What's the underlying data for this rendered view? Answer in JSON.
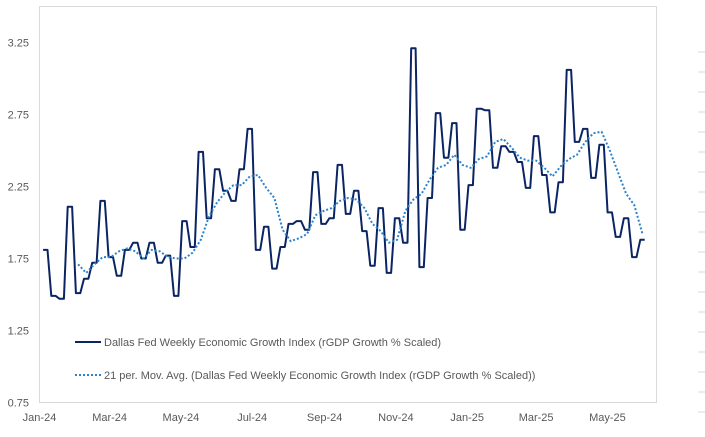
{
  "chart_data": {
    "type": "line",
    "title": "",
    "xlabel": "",
    "ylabel": "",
    "ylim": [
      0.75,
      3.5
    ],
    "y_ticks": [
      "0.75",
      "1.25",
      "1.75",
      "2.25",
      "2.75",
      "3.25"
    ],
    "x_ticks": [
      "Jan-24",
      "Mar-24",
      "May-24",
      "Jul-24",
      "Sep-24",
      "Nov-24",
      "Jan-25",
      "Mar-25",
      "May-25"
    ],
    "x_tick_dates": [
      "2024-01-01",
      "2024-03-01",
      "2024-05-01",
      "2024-07-01",
      "2024-09-01",
      "2024-11-01",
      "2025-01-01",
      "2025-03-01",
      "2025-05-01"
    ],
    "xlim": [
      "2024-01-01",
      "2025-06-12"
    ],
    "grid": false,
    "legend_position": "bottom-left (inside plot)",
    "x": [
      "2024-01-06",
      "2024-01-13",
      "2024-01-20",
      "2024-01-27",
      "2024-02-03",
      "2024-02-10",
      "2024-02-17",
      "2024-02-24",
      "2024-03-02",
      "2024-03-09",
      "2024-03-16",
      "2024-03-23",
      "2024-03-30",
      "2024-04-06",
      "2024-04-13",
      "2024-04-20",
      "2024-04-27",
      "2024-05-04",
      "2024-05-11",
      "2024-05-18",
      "2024-05-25",
      "2024-06-01",
      "2024-06-08",
      "2024-06-15",
      "2024-06-22",
      "2024-06-29",
      "2024-07-06",
      "2024-07-13",
      "2024-07-20",
      "2024-07-27",
      "2024-08-03",
      "2024-08-10",
      "2024-08-17",
      "2024-08-24",
      "2024-08-31",
      "2024-09-07",
      "2024-09-14",
      "2024-09-21",
      "2024-09-28",
      "2024-10-05",
      "2024-10-12",
      "2024-10-19",
      "2024-10-26",
      "2024-11-02",
      "2024-11-09",
      "2024-11-16",
      "2024-11-23",
      "2024-11-30",
      "2024-12-07",
      "2024-12-14",
      "2024-12-21",
      "2024-12-28",
      "2025-01-04",
      "2025-01-11",
      "2025-01-18",
      "2025-01-25",
      "2025-02-01",
      "2025-02-08",
      "2025-02-15",
      "2025-02-22",
      "2025-03-01",
      "2025-03-08",
      "2025-03-15",
      "2025-03-22",
      "2025-03-29",
      "2025-04-05",
      "2025-04-12",
      "2025-04-19",
      "2025-04-26",
      "2025-05-03",
      "2025-05-10",
      "2025-05-17",
      "2025-05-24",
      "2025-05-31"
    ],
    "series": [
      {
        "name": "Dallas Fed Weekly Economic Growth Index (rGDP Growth % Scaled)",
        "color": "#0b2463",
        "style": "solid",
        "values": [
          1.81,
          1.49,
          1.47,
          2.11,
          1.51,
          1.61,
          1.72,
          2.15,
          1.76,
          1.63,
          1.81,
          1.86,
          1.75,
          1.86,
          1.72,
          1.77,
          1.49,
          2.01,
          1.83,
          2.49,
          2.03,
          2.37,
          2.22,
          2.15,
          2.37,
          2.65,
          1.81,
          1.97,
          1.68,
          1.83,
          1.99,
          2.01,
          1.95,
          2.35,
          1.99,
          2.03,
          2.4,
          2.06,
          2.22,
          1.94,
          1.7,
          2.1,
          1.65,
          2.03,
          1.86,
          3.21,
          1.69,
          2.17,
          2.76,
          2.45,
          2.69,
          1.95,
          2.26,
          2.79,
          2.78,
          2.38,
          2.53,
          2.49,
          2.42,
          2.24,
          2.6,
          2.33,
          2.07,
          2.28,
          3.06,
          2.56,
          2.65,
          2.31,
          2.54,
          2.07,
          1.9,
          2.03,
          1.76,
          1.88
        ]
      },
      {
        "name": "21 per. Mov. Avg. (Dallas Fed Weekly Economic Growth Index (rGDP Growth % Scaled))",
        "color": "#2a83cf",
        "style": "dotted",
        "values": [
          null,
          null,
          null,
          null,
          1.71,
          1.65,
          1.71,
          1.76,
          1.76,
          1.8,
          1.82,
          1.8,
          1.75,
          1.81,
          1.8,
          1.76,
          1.75,
          1.75,
          1.79,
          1.88,
          2.04,
          2.14,
          2.21,
          2.26,
          2.26,
          2.32,
          2.33,
          2.24,
          2.17,
          1.95,
          1.87,
          1.89,
          1.92,
          2.05,
          2.08,
          2.1,
          2.15,
          2.17,
          2.16,
          2.1,
          1.99,
          1.94,
          1.86,
          1.88,
          2.08,
          2.16,
          2.2,
          2.3,
          2.38,
          2.4,
          2.47,
          2.4,
          2.38,
          2.44,
          2.46,
          2.56,
          2.58,
          2.52,
          2.45,
          2.43,
          2.43,
          2.38,
          2.32,
          2.39,
          2.44,
          2.47,
          2.56,
          2.62,
          2.63,
          2.5,
          2.35,
          2.2,
          2.12,
          1.92
        ]
      }
    ]
  }
}
